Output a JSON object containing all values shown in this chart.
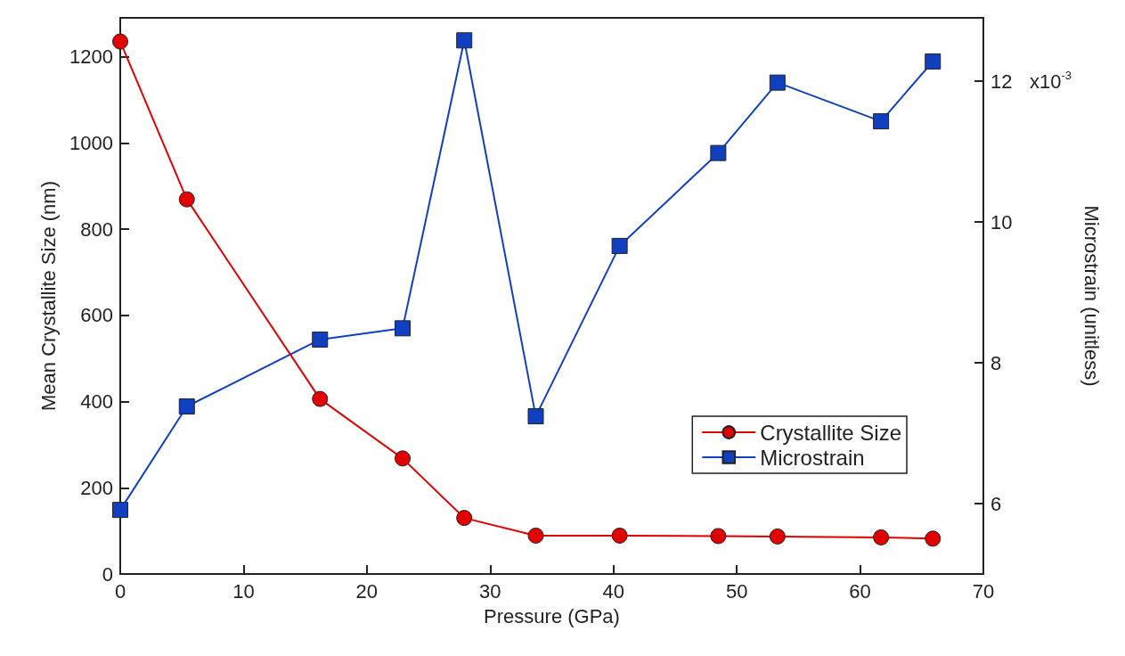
{
  "chart_data": {
    "type": "line",
    "xlabel": "Pressure (GPa)",
    "ylabel": "Mean Crystallite Size (nm)",
    "y2label": "Microstrain (unitless)",
    "x": [
      0,
      5.4,
      16.2,
      22.9,
      27.9,
      33.7,
      40.5,
      48.5,
      53.3,
      61.7,
      65.9
    ],
    "series": [
      {
        "name": "Crystallite Size",
        "color": "#e00000",
        "marker": "circle",
        "values": [
          1235,
          869,
          406,
          268,
          130,
          89,
          89,
          88,
          87,
          85,
          82
        ]
      },
      {
        "name": "Microstrain",
        "color": "#1040c0",
        "marker": "square",
        "axis": "y2",
        "values": [
          5.91,
          7.38,
          8.33,
          8.49,
          12.58,
          7.24,
          9.66,
          10.98,
          11.98,
          11.43,
          12.28
        ]
      }
    ],
    "xlim": [
      0,
      70
    ],
    "xticks": [
      0,
      10,
      20,
      30,
      40,
      50,
      60,
      70
    ],
    "ylim": [
      0,
      1290
    ],
    "yticks": [
      0,
      200,
      400,
      600,
      800,
      1000,
      1200
    ],
    "y2lim": [
      5,
      12.9
    ],
    "y2ticks": [
      6,
      8,
      10,
      12
    ],
    "annotations": [
      "x10$^{-3}$"
    ],
    "grid": false,
    "legend": "bottom right",
    "line_style": "solid"
  }
}
